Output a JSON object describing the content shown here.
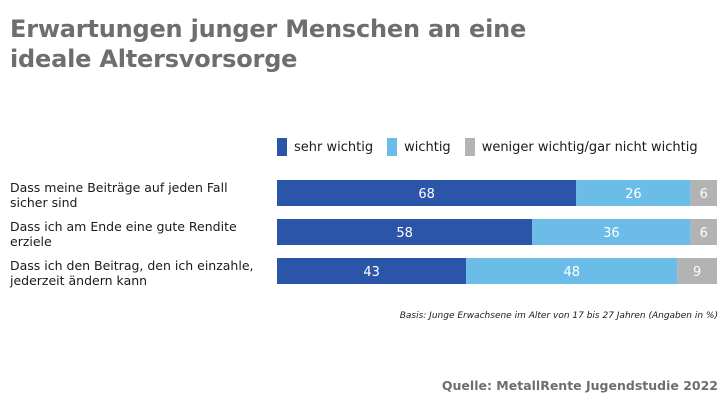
{
  "title_lines": [
    "Erwartungen junger Menschen an eine",
    "ideale Altersvorsorge"
  ],
  "legend": [
    {
      "label": "sehr wichtig",
      "color": "#2b55a8"
    },
    {
      "label": "wichtig",
      "color": "#6bbde8"
    },
    {
      "label": "weniger wichtig/gar nicht wichtig",
      "color": "#b3b3b3"
    }
  ],
  "chart_data": {
    "type": "bar",
    "orientation": "horizontal",
    "stacked": true,
    "categories": [
      [
        "Dass meine Beiträge auf jeden Fall",
        "sicher sind"
      ],
      [
        "Dass ich am Ende eine gute Rendite",
        "erziele"
      ],
      [
        "Dass ich den Beitrag, den ich einzahle,",
        "jederzeit ändern kann"
      ]
    ],
    "series": [
      {
        "name": "sehr wichtig",
        "color": "#2b55a8",
        "label_color": "#ffffff",
        "values": [
          68,
          58,
          43
        ]
      },
      {
        "name": "wichtig",
        "color": "#6bbde8",
        "label_color": "#ffffff",
        "values": [
          26,
          36,
          48
        ]
      },
      {
        "name": "weniger wichtig/gar nicht wichtig",
        "color": "#b3b3b3",
        "label_color": "#ffffff",
        "values": [
          6,
          6,
          9
        ]
      }
    ],
    "xlim": [
      0,
      100
    ],
    "unit": "%"
  },
  "basis": "Basis: Junge Erwachsene im Alter von 17 bis 27 Jahren (Angaben in %)",
  "source": "Quelle: MetallRente Jugendstudie 2022"
}
